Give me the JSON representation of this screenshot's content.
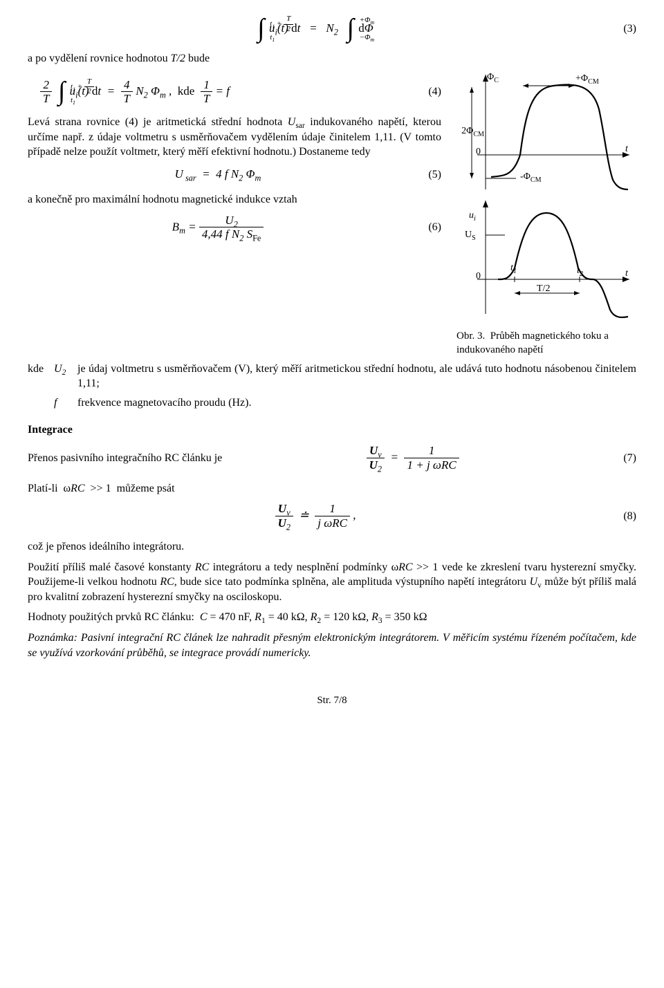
{
  "eq3": {
    "upper": "<i>t</i><sub>1</sub> + <span class='frac' style='font-size:11px;'><span class='n'><i>T</i></span><span class='d'>2</span></span>",
    "lower": "<i>t</i><sub>1</sub>",
    "left": "u<sub>i</sub>(t) <span class='up'>d</span>t",
    "mid": "=",
    "r_upper": "+Φ<sub>m</sub>",
    "r_lower": "−Φ<sub>m</sub>",
    "right": "N<sub>2</sub>&nbsp;&nbsp;",
    "right2": "<span class='up'>d</span>Φ",
    "num": "(3)"
  },
  "para1": "a po vydělení rovnice hodnotou <i>T/2</i> bude",
  "eq4": {
    "pre": "<span class='frac'><span class='n'>2</span><span class='d'><i>T</i></span></span>&nbsp;",
    "upper": "<i>t</i><sub>1</sub> + <span class='frac' style='font-size:11px;'><span class='n'><i>T</i></span><span class='d'>2</span></span>",
    "lower": "<i>t</i><sub>1</sub>",
    "body": "u<sub>i</sub>(t) <span class='up'>d</span>t&nbsp;&nbsp;=&nbsp;&nbsp;<span class='frac'><span class='n'>4</span><span class='d'><i>T</i></span></span>&nbsp;N<sub>2</sub>&nbsp;Φ<sub>m</sub>&nbsp;,&nbsp;&nbsp;<span class='up'>kde</span>&nbsp;&nbsp;<span class='frac'><span class='n'>1</span><span class='d'><i>T</i></span></span> = f",
    "num": "(4)"
  },
  "para2": "Levá strana rovnice (4) je aritmetická střední hodnota <i>U</i><sub>sar</sub> indukovaného napětí, kterou určíme např. z&nbsp;údaje voltmetru s&nbsp;usměrňovačem vydělením údaje činitelem 1,11. (V&nbsp;tomto případě nelze použít voltmetr, který měří efektivní hodnotu.) Dostaneme tedy",
  "eq5": {
    "body": "U<sub>&nbsp;sar</sub>&nbsp;&nbsp;=&nbsp;&nbsp;4&nbsp;f&nbsp;N<sub>2</sub>&nbsp;Φ<sub>m</sub>",
    "num": "(5)"
  },
  "para3": "a konečně pro maximální hodnotu magnetické indukce vztah",
  "eq6": {
    "body": "B<sub>m</sub> = <span class='frac'><span class='n'>U<sub>2</sub></span><span class='d'>4,44 f N<sub>2</sub> S<sub><span class='up'>Fe</span></sub></span></span>",
    "num": "(6)"
  },
  "def": {
    "kde": "kde",
    "sym1": "U<sub>2</sub>",
    "desc1": "je údaj voltmetru s usměrňovačem (V), který měří aritmetickou střední hodnotu, ale udává tuto hodnotu násobenou činitelem 1,11;",
    "sym2": "f",
    "desc2": "frekvence magnetovacího proudu (Hz)."
  },
  "sect_int": "Integrace",
  "int_line1": "Přenos pasivního integračního RC článku je",
  "eq7": {
    "body": "<span class='frac'><span class='n'><b>U</b><sub>v</sub></span><span class='d'><b>U</b><sub>2</sub></span></span>&nbsp;&nbsp;=&nbsp;&nbsp;<span class='frac'><span class='n'>1</span><span class='d'>1 + j&nbsp;ω<i>RC</i></span></span>",
    "num": "(7)"
  },
  "int_line2": "Platí-li &nbsp;ω<i>RC</i>&nbsp; &gt;&gt; 1 &nbsp;můžeme psát",
  "eq8": {
    "body": "<span class='frac'><span class='n'><b>U</b><sub>v</sub></span><span class='d'><b>U</b><sub>2</sub></span></span>&nbsp;&nbsp;≐&nbsp;&nbsp;<span class='frac'><span class='n'>1</span><span class='d'>j&nbsp;ω<i>RC</i></span></span>&nbsp;,",
    "num": "(8)"
  },
  "int_line3": "což je přenos ideálního integrátoru.",
  "int_para": "Použití příliš malé časové konstanty <i>RC</i> integrátoru a tedy nesplnění podmínky ω<i>RC</i> &gt;&gt; 1 vede ke zkreslení tvaru hysterezní smyčky. Použijeme-li velkou hodnotu <i>RC</i>, bude sice tato podmínka splněna, ale amplituda výstupního napětí integrátoru <i>U</i><sub>v</sub> může být příliš malá pro kvalitní zobrazení hysterezní smyčky na osciloskopu.",
  "rc_vals": "Hodnoty použitých prvků RC článku: &nbsp;<i>C</i> = 470 nF, <i>R</i><sub>1</sub> = 40 kΩ, <i>R</i><sub>2</sub> = 120 kΩ, <i>R</i><sub>3</sub> = 350 kΩ",
  "note": "Poznámka: Pasivní integrační RC článek lze nahradit přesným elektronickým integrátorem. V&nbsp;měřicím systému řízeném počítačem, kde se využívá vzorkování průběhů, se integrace provádí numericky.",
  "fig": {
    "caption": "Obr. 3.&nbsp;&nbsp;Průběh magnetického toku a indukovaného napětí",
    "labels": {
      "phiC": "Φ<sub>C</sub>",
      "plusPhiCM": "+Φ<sub>CM</sub>",
      "twoPhiCM": "2Φ<sub>CM</sub>",
      "minusPhiCM": "-Φ<sub>CM</sub>",
      "zero": "0",
      "t": "t",
      "ui": "u<sub>i</sub>",
      "US": "U<sub>S</sub>",
      "t1": "t<sub>1</sub>",
      "t2": "t<sub>2</sub>",
      "Thalf": "T/2"
    },
    "stroke": "#000000",
    "stroke_w": 2.2,
    "thin_w": 1
  },
  "page": "Str. 7/8"
}
